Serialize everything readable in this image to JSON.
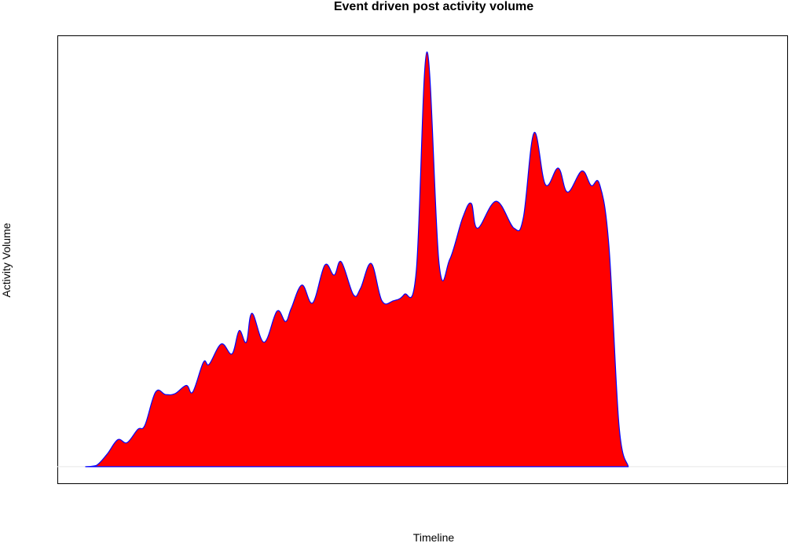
{
  "chart_data": {
    "type": "area",
    "title": "Event driven post activity volume",
    "xlabel": "Timeline",
    "ylabel": "Activity Volume",
    "axes_ticks": false,
    "grid": false,
    "legend": "none",
    "xlim": [
      0,
      100
    ],
    "ylim": [
      -0.04,
      1.04
    ],
    "fill_color": "#ff0000",
    "line_color": "#0000ff",
    "baseline_color": "#e6e6e6",
    "frame_color": "#000000",
    "series": [
      {
        "x": [
          0,
          1.5,
          3,
          4.5,
          5.8,
          7.3,
          8.3,
          9.8,
          11.2,
          12.5,
          14.1,
          15,
          16.5,
          17.3,
          19,
          20.5,
          21.5,
          22.5,
          23.3,
          25,
          26.8,
          28,
          28.8,
          30.3,
          31.8,
          33.5,
          34.8,
          35.8,
          37.5,
          38.5,
          40,
          41.5,
          43.1,
          44.6,
          46.3,
          47.8,
          49.5,
          51,
          52.8,
          54,
          54.9,
          57.5,
          60,
          61.3,
          62.8,
          64.4,
          66.2,
          67.5,
          69.5,
          70.8,
          72,
          73.3,
          74.7,
          76,
          77.2,
          78.8,
          80.2,
          81.5,
          83,
          84.5,
          86,
          87.2,
          88.6,
          89.7,
          92,
          93
        ],
        "y": [
          0,
          0.003,
          0.03,
          0.065,
          0.058,
          0.09,
          0.1,
          0.18,
          0.174,
          0.176,
          0.196,
          0.18,
          0.252,
          0.247,
          0.296,
          0.272,
          0.328,
          0.3,
          0.37,
          0.3,
          0.375,
          0.35,
          0.382,
          0.438,
          0.395,
          0.486,
          0.462,
          0.494,
          0.415,
          0.43,
          0.49,
          0.4,
          0.4,
          0.415,
          0.47,
          1.0,
          0.49,
          0.5,
          0.6,
          0.635,
          0.575,
          0.64,
          0.575,
          0.6,
          0.805,
          0.68,
          0.72,
          0.662,
          0.713,
          0.678,
          0.68,
          0.53,
          0.1,
          0.0,
          0,
          0,
          0,
          0,
          0,
          0,
          0,
          0,
          0,
          0,
          0,
          0
        ]
      }
    ]
  }
}
